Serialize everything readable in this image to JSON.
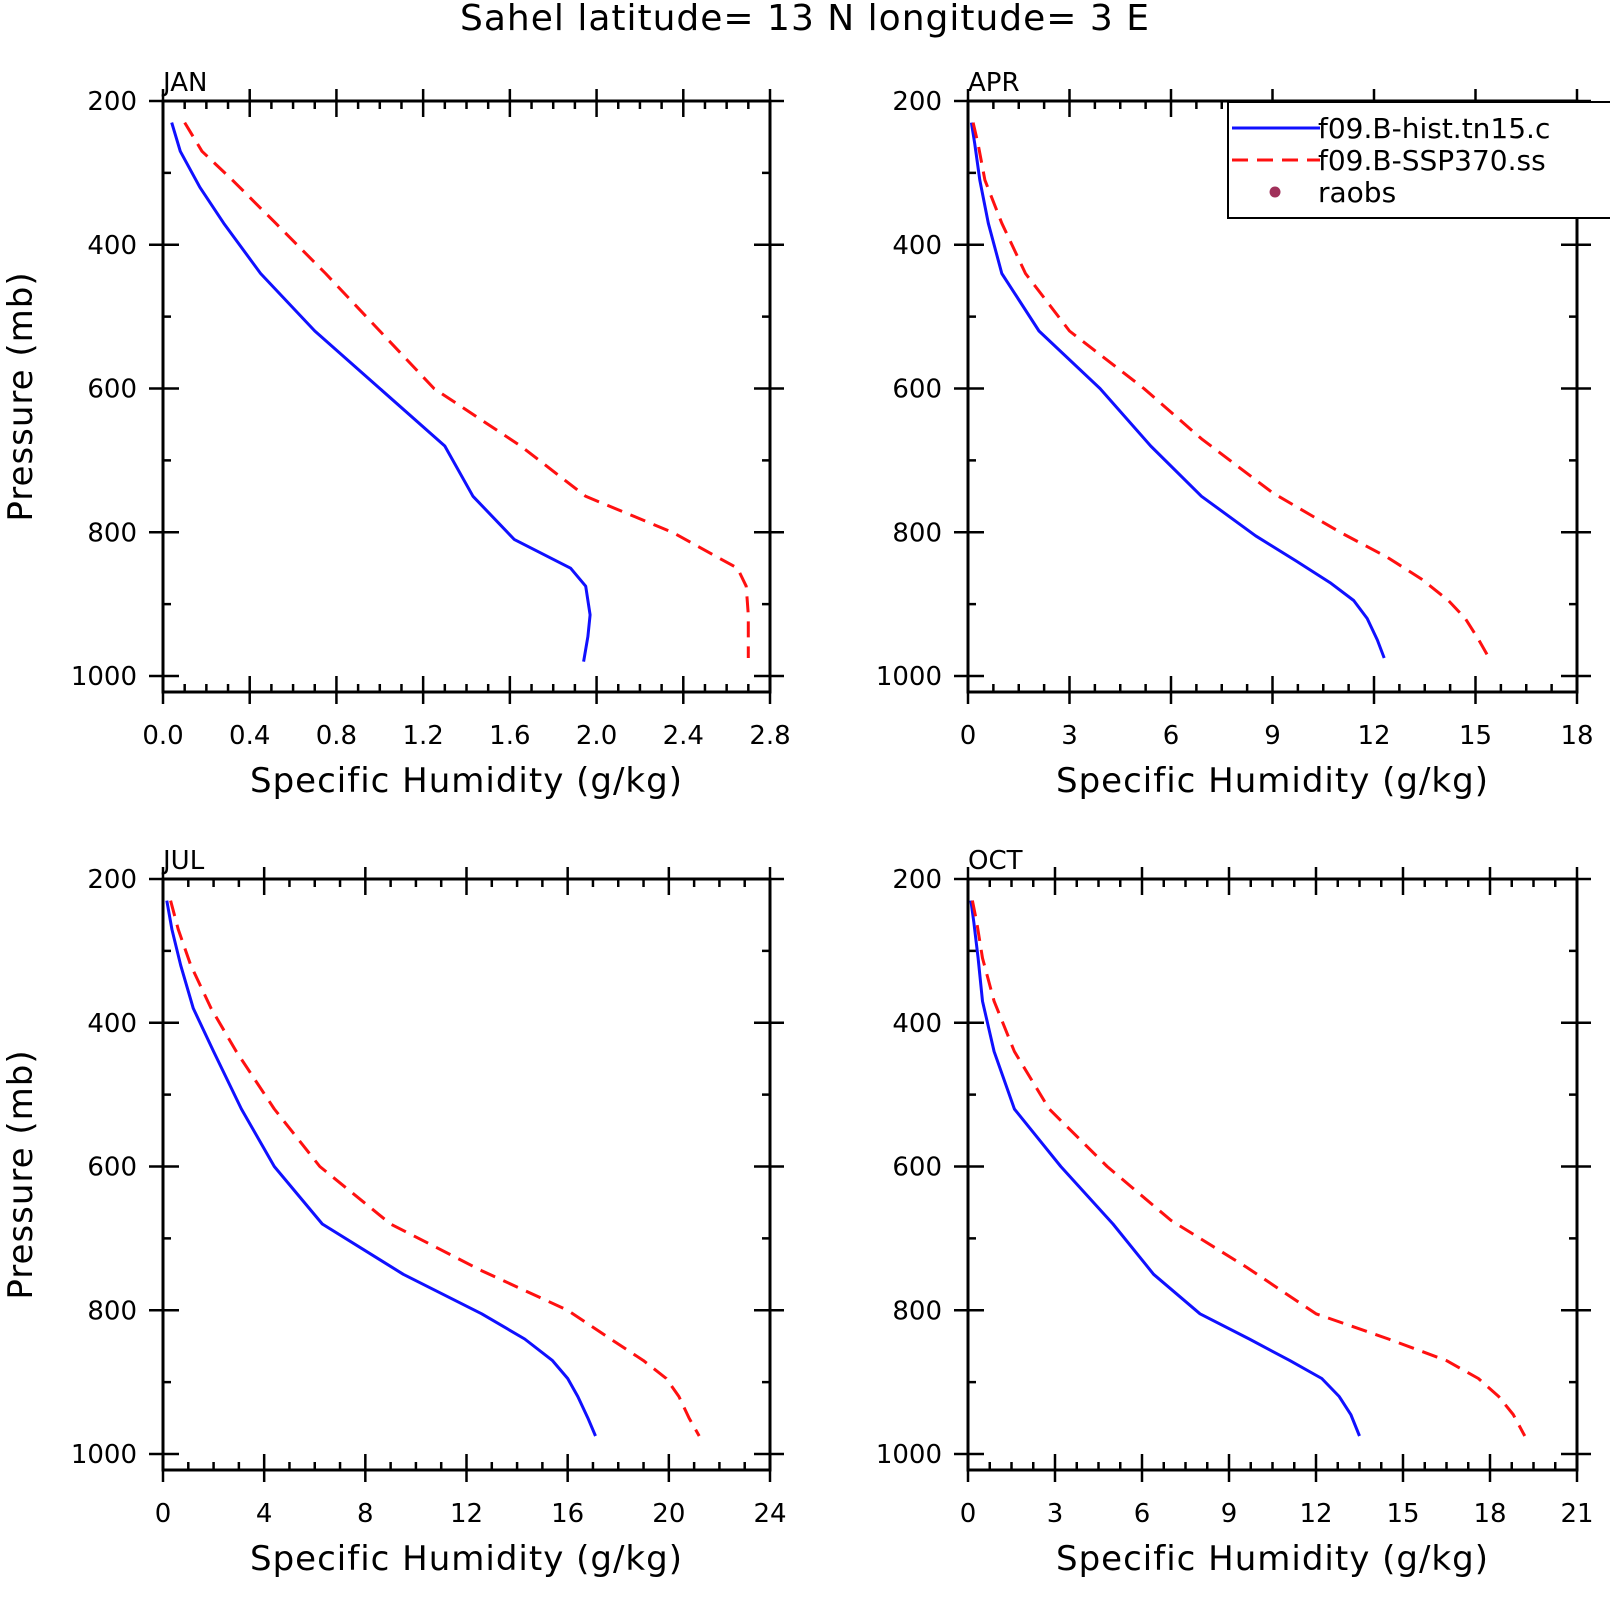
{
  "title": "Sahel  latitude= 13 N longitude= 3 E",
  "colors": {
    "hist": "#1010ff",
    "ssp": "#ff1010",
    "raobs": "#a0305a",
    "axis": "#000000"
  },
  "legend": {
    "placement": "top-right of APR panel",
    "entries": [
      {
        "label": "f09.B-hist.tn15.c",
        "style": "solid",
        "color": "#1010ff"
      },
      {
        "label": "f09.B-SSP370.ss",
        "style": "dashed",
        "color": "#ff1010"
      },
      {
        "label": "raobs",
        "style": "dot",
        "color": "#a0305a"
      }
    ]
  },
  "chart_data": [
    {
      "type": "line",
      "panel": "JAN",
      "month_label": "JAN",
      "xlabel": "Specific Humidity (g/kg)",
      "ylabel": "Pressure (mb)",
      "xlim": [
        0,
        2.8
      ],
      "ylim": [
        1000,
        200
      ],
      "xticks": [
        "0.0",
        "0.4",
        "0.8",
        "1.2",
        "1.6",
        "2.0",
        "2.4",
        "2.8"
      ],
      "yticks": [
        "200",
        "400",
        "600",
        "800",
        "1000"
      ],
      "series": [
        {
          "name": "f09.B-hist.tn15.c",
          "x": [
            0.04,
            0.08,
            0.17,
            0.28,
            0.45,
            0.7,
            1.0,
            1.3,
            1.43,
            1.62,
            1.88,
            1.95,
            1.97,
            1.96,
            1.94
          ],
          "y": [
            230,
            270,
            320,
            370,
            440,
            520,
            600,
            680,
            750,
            810,
            850,
            875,
            915,
            945,
            980
          ]
        },
        {
          "name": "f09.B-SSP370.ss",
          "x": [
            0.1,
            0.18,
            0.32,
            0.52,
            0.75,
            1.0,
            1.25,
            1.65,
            1.95,
            2.35,
            2.65,
            2.69,
            2.7,
            2.7,
            2.7
          ],
          "y": [
            230,
            270,
            310,
            370,
            440,
            520,
            600,
            680,
            750,
            800,
            850,
            875,
            915,
            945,
            975
          ]
        }
      ]
    },
    {
      "type": "line",
      "panel": "APR",
      "month_label": "APR",
      "xlabel": "Specific Humidity (g/kg)",
      "ylabel": "",
      "xlim": [
        0,
        18
      ],
      "ylim": [
        1000,
        200
      ],
      "xticks": [
        "0",
        "3",
        "6",
        "9",
        "12",
        "15",
        "18"
      ],
      "yticks": [
        "200",
        "400",
        "600",
        "800",
        "1000"
      ],
      "series": [
        {
          "name": "f09.B-hist.tn15.c",
          "x": [
            0.1,
            0.2,
            0.35,
            0.6,
            1.0,
            2.1,
            3.9,
            5.4,
            6.9,
            8.5,
            9.7,
            10.7,
            11.4,
            11.8,
            12.1,
            12.3
          ],
          "y": [
            230,
            260,
            310,
            370,
            440,
            520,
            600,
            680,
            750,
            805,
            840,
            870,
            895,
            920,
            950,
            975
          ]
        },
        {
          "name": "f09.B-SSP370.ss",
          "x": [
            0.15,
            0.3,
            0.5,
            1.0,
            1.7,
            3.0,
            5.2,
            6.9,
            9.0,
            11.0,
            12.4,
            13.4,
            14.2,
            14.7,
            15.1,
            15.4
          ],
          "y": [
            230,
            260,
            310,
            370,
            440,
            520,
            600,
            670,
            745,
            800,
            835,
            865,
            895,
            920,
            950,
            975
          ]
        }
      ]
    },
    {
      "type": "line",
      "panel": "JUL",
      "month_label": "JUL",
      "xlabel": "Specific Humidity (g/kg)",
      "ylabel": "Pressure (mb)",
      "xlim": [
        0,
        24
      ],
      "ylim": [
        1000,
        200
      ],
      "xticks": [
        "0",
        "4",
        "8",
        "12",
        "16",
        "20",
        "24"
      ],
      "yticks": [
        "200",
        "400",
        "600",
        "800",
        "1000"
      ],
      "series": [
        {
          "name": "f09.B-hist.tn15.c",
          "x": [
            0.15,
            0.35,
            0.7,
            1.2,
            2.0,
            3.1,
            4.4,
            6.3,
            9.5,
            12.6,
            14.3,
            15.4,
            16.0,
            16.4,
            16.8,
            17.1
          ],
          "y": [
            230,
            270,
            320,
            380,
            440,
            520,
            600,
            680,
            750,
            805,
            840,
            870,
            895,
            920,
            950,
            975
          ]
        },
        {
          "name": "f09.B-SSP370.ss",
          "x": [
            0.3,
            0.6,
            1.1,
            1.9,
            2.9,
            4.4,
            6.2,
            9.0,
            12.6,
            16.0,
            17.7,
            19.0,
            19.9,
            20.4,
            20.8,
            21.2
          ],
          "y": [
            230,
            270,
            320,
            380,
            440,
            520,
            600,
            680,
            745,
            800,
            840,
            870,
            895,
            920,
            950,
            975
          ]
        }
      ]
    },
    {
      "type": "line",
      "panel": "OCT",
      "month_label": "OCT",
      "xlabel": "Specific Humidity (g/kg)",
      "ylabel": "",
      "xlim": [
        0,
        21
      ],
      "ylim": [
        1000,
        200
      ],
      "xticks": [
        "0",
        "3",
        "6",
        "9",
        "12",
        "15",
        "18",
        "21"
      ],
      "yticks": [
        "200",
        "400",
        "600",
        "800",
        "1000"
      ],
      "series": [
        {
          "name": "f09.B-hist.tn15.c",
          "x": [
            0.1,
            0.2,
            0.35,
            0.5,
            0.9,
            1.6,
            3.2,
            5.0,
            6.4,
            8.0,
            9.7,
            11.1,
            12.2,
            12.8,
            13.2,
            13.5
          ],
          "y": [
            230,
            260,
            310,
            370,
            440,
            520,
            600,
            680,
            750,
            805,
            840,
            870,
            895,
            920,
            945,
            975
          ]
        },
        {
          "name": "f09.B-SSP370.ss",
          "x": [
            0.15,
            0.3,
            0.5,
            0.9,
            1.6,
            2.8,
            4.8,
            7.0,
            9.6,
            12.0,
            14.5,
            16.5,
            17.6,
            18.3,
            18.8,
            19.2
          ],
          "y": [
            230,
            260,
            310,
            370,
            440,
            520,
            600,
            675,
            740,
            805,
            840,
            870,
            895,
            920,
            945,
            975
          ]
        }
      ]
    }
  ]
}
